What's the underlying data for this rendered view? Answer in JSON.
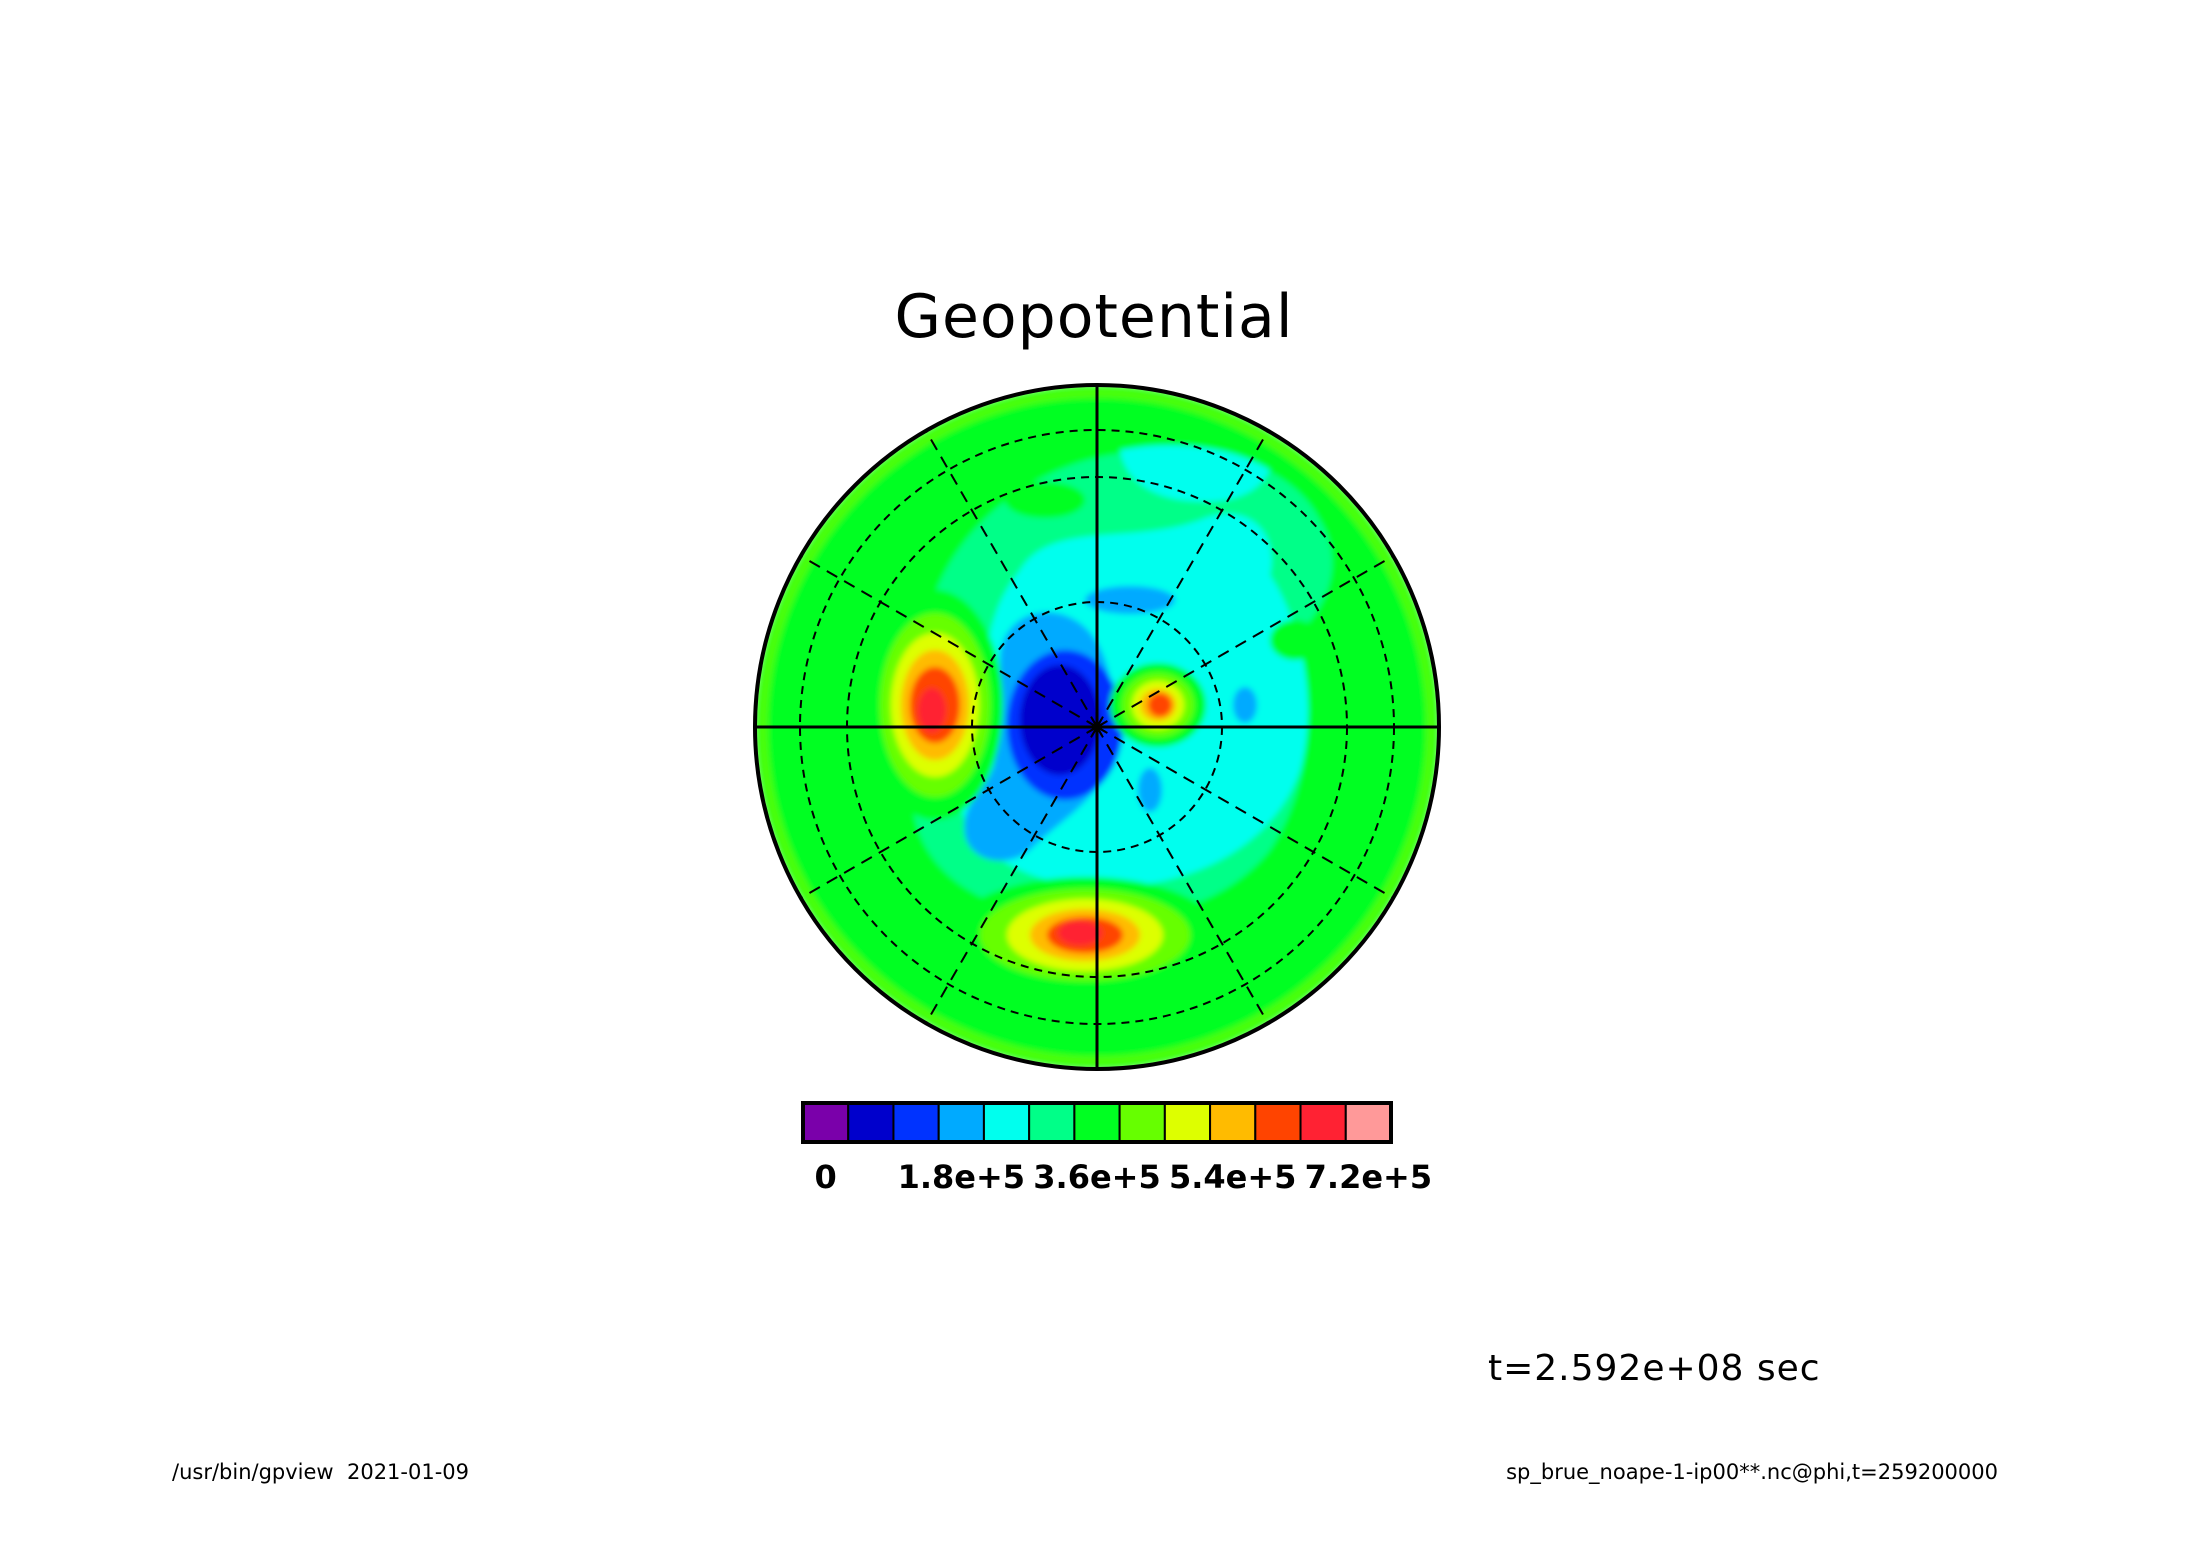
{
  "title": "Geopotential",
  "time_label": "t=2.592e+08 sec",
  "footer": {
    "program": "/usr/bin/gpview",
    "date": "2021-01-09",
    "source": "sp_brue_noape-1-ip00**.nc@phi,t=259200000"
  },
  "chart_data": {
    "type": "heatmap",
    "projection": "polar stereographic (hemisphere)",
    "title": "Geopotential",
    "field": "phi",
    "time": "t=2.592e+08 sec",
    "background_level_color": "#00ff66",
    "colorbar": {
      "colors": [
        "#7a00aa",
        "#0000cc",
        "#0033ff",
        "#00aaff",
        "#00ffee",
        "#00ff88",
        "#00ff22",
        "#66ff00",
        "#ddff00",
        "#ffbb00",
        "#ff4400",
        "#ff2233",
        "#ff9999"
      ],
      "tick_labels": [
        "0",
        "1.8e+5",
        "3.6e+5",
        "5.4e+5",
        "7.2e+5"
      ],
      "tick_values": [
        0,
        180000,
        360000,
        540000,
        720000
      ],
      "interval": 60000
    },
    "features": [
      {
        "description": "low center",
        "color_index": 1
      },
      {
        "description": "high west of pole",
        "color_index": 11
      },
      {
        "description": "high east of pole",
        "color_index": 10
      },
      {
        "description": "high south of pole",
        "color_index": 11
      }
    ],
    "grid": {
      "meridians_deg": 30,
      "latitude_circles": 3,
      "line_style": "dashed"
    }
  }
}
